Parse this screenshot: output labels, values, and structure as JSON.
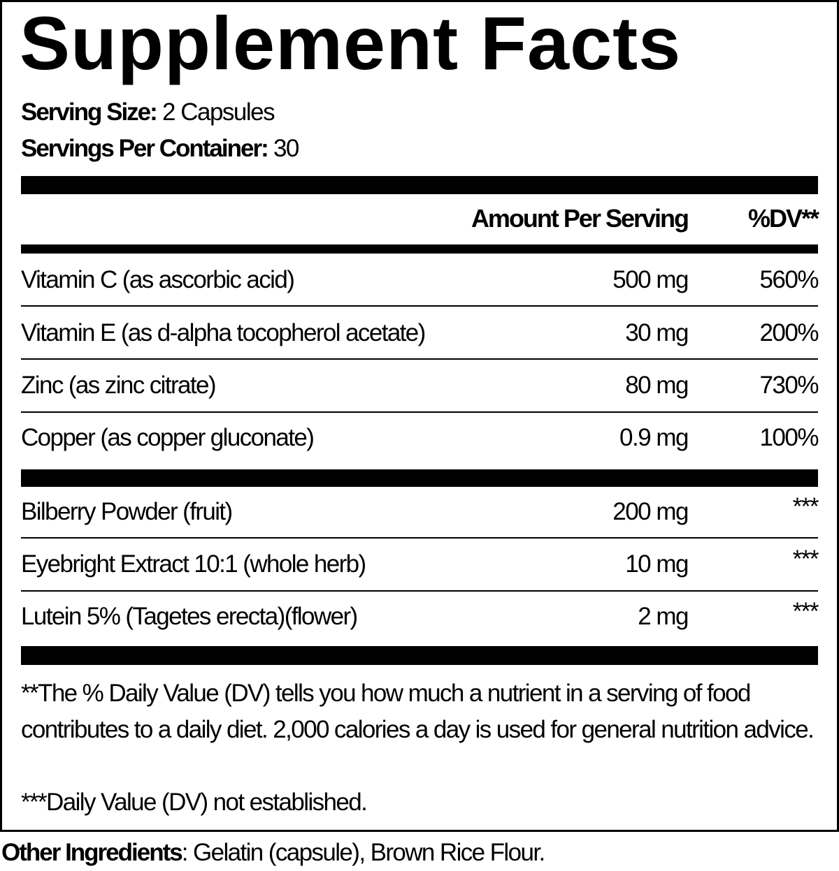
{
  "title": "Supplement Facts",
  "serving": {
    "size_label": "Serving Size:",
    "size_value": "2 Capsules",
    "per_container_label": "Servings Per Container:",
    "per_container_value": "30"
  },
  "header": {
    "amount": "Amount Per Serving",
    "dv": "%DV**"
  },
  "nutrients": [
    {
      "name": "Vitamin C (as ascorbic acid)",
      "amount": "500 mg",
      "dv": "560%"
    },
    {
      "name": "Vitamin E (as d-alpha tocopherol acetate)",
      "amount": "30 mg",
      "dv": "200%"
    },
    {
      "name": "Zinc (as zinc citrate)",
      "amount": "80 mg",
      "dv": "730%"
    },
    {
      "name": "Copper (as copper gluconate)",
      "amount": "0.9 mg",
      "dv": "100%"
    }
  ],
  "botanicals": [
    {
      "name": "Bilberry Powder (fruit)",
      "amount": "200 mg",
      "dv": "***"
    },
    {
      "name": "Eyebright Extract 10:1  (whole herb)",
      "amount": "10 mg",
      "dv": "***"
    },
    {
      "name": "Lutein 5% (Tagetes erecta)(flower)",
      "amount": "2 mg",
      "dv": "***"
    }
  ],
  "footnotes": {
    "dv_note": "**The % Daily Value (DV) tells you how much a nutrient in a serving of food contributes to a daily diet. 2,000 calories a day is used for general nutrition advice.",
    "not_established": "***Daily Value (DV) not established."
  },
  "other_ingredients": {
    "label": "Other Ingredients",
    "value": ": Gelatin (capsule), Brown Rice Flour."
  }
}
